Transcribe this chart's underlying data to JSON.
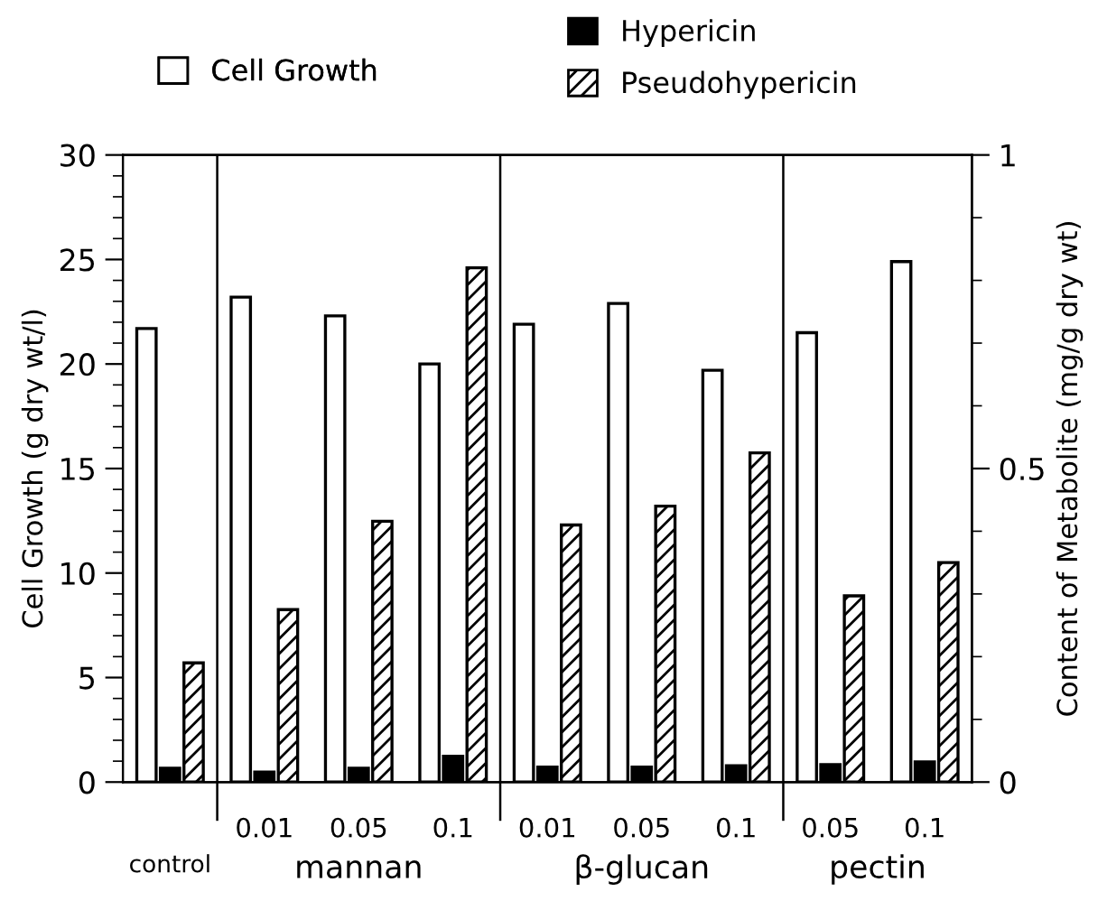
{
  "chart_data": {
    "type": "bar",
    "categories": [
      null,
      "0.01",
      "0.05",
      "0.1",
      "0.01",
      "0.05",
      "0.1",
      "0.05",
      "0.1"
    ],
    "series": [
      {
        "name": "Cell Growth",
        "color": "#ffffff",
        "values": [
          21.7,
          23.2,
          22.3,
          20.0,
          21.9,
          22.9,
          19.7,
          21.5,
          24.9
        ]
      },
      {
        "name": "Hypericin",
        "color": "#000000",
        "axis": "y2",
        "values": [
          0.022,
          0.016,
          0.022,
          0.041,
          0.024,
          0.024,
          0.026,
          0.028,
          0.032
        ]
      },
      {
        "name": "Pseudohypericin",
        "color": "#000000",
        "axis": "y2",
        "values": [
          0.19,
          0.275,
          0.416,
          0.82,
          0.41,
          0.44,
          0.525,
          0.297,
          0.35
        ]
      }
    ],
    "ylabel": "Cell Growth (g dry wt/l)",
    "y2label": "Content of Metabolite (mg/g dry wt)",
    "ylim": [
      0,
      30
    ],
    "yticks": [
      0,
      {
        "value": 1,
        "label": null
      },
      {
        "value": 2,
        "label": null
      },
      {
        "value": 3,
        "label": null
      },
      {
        "value": 4,
        "label": null
      },
      5,
      {
        "value": 6,
        "label": null
      },
      {
        "value": 7,
        "label": null
      },
      {
        "value": 8,
        "label": null
      },
      {
        "value": 9,
        "label": null
      },
      10,
      {
        "value": 11,
        "label": null
      },
      {
        "value": 12,
        "label": null
      },
      {
        "value": 13,
        "label": null
      },
      {
        "value": 14,
        "label": null
      },
      15,
      {
        "value": 16,
        "label": null
      },
      {
        "value": 17,
        "label": null
      },
      {
        "value": 18,
        "label": null
      },
      {
        "value": 19,
        "label": null
      },
      20,
      {
        "value": 21,
        "label": null
      },
      {
        "value": 22,
        "label": null
      },
      {
        "value": 23,
        "label": null
      },
      {
        "value": 24,
        "label": null
      },
      25,
      {
        "value": 26,
        "label": null
      },
      {
        "value": 27,
        "label": null
      },
      {
        "value": 28,
        "label": null
      },
      {
        "value": 29,
        "label": null
      },
      30
    ],
    "y2lim": [
      0,
      1
    ],
    "y2ticks": [
      0,
      {
        "value": 0.1,
        "label": null
      },
      {
        "value": 0.2,
        "label": null
      },
      {
        "value": 0.3,
        "label": null
      },
      {
        "value": 0.4,
        "label": null
      },
      0.5,
      {
        "value": 0.6,
        "label": null
      },
      {
        "value": 0.7,
        "label": null
      },
      {
        "value": 0.8,
        "label": null
      },
      {
        "value": 0.9,
        "label": null
      },
      1
    ],
    "annotations": [
      "control",
      "mannan",
      "β-glucan",
      "pectin"
    ],
    "legend": "top",
    "grid": false
  }
}
